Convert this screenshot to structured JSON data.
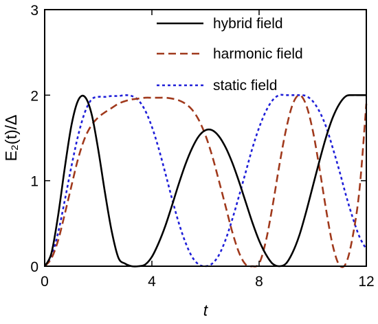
{
  "chart_data": {
    "type": "line",
    "xlabel": "t",
    "ylabel": "E₂(t)/Δ",
    "xlim": [
      0,
      12
    ],
    "ylim": [
      0,
      3
    ],
    "xticks": [
      "0",
      "4",
      "8",
      "12"
    ],
    "yticks": [
      "0",
      "1",
      "2",
      "3"
    ],
    "grid": false,
    "legend_position": "top-right",
    "x": [
      0,
      0.25,
      0.5,
      0.75,
      1,
      1.25,
      1.5,
      1.75,
      2,
      2.25,
      2.5,
      2.75,
      3,
      3.25,
      3.5,
      3.75,
      4,
      4.25,
      4.5,
      4.75,
      5,
      5.25,
      5.5,
      5.75,
      6,
      6.25,
      6.5,
      6.75,
      7,
      7.25,
      7.5,
      7.75,
      8,
      8.25,
      8.5,
      8.75,
      9,
      9.25,
      9.5,
      9.75,
      10,
      10.25,
      10.5,
      10.75,
      11,
      11.25,
      11.5,
      11.75,
      12
    ],
    "series": [
      {
        "name": "hybrid field",
        "color": "#000000",
        "dash": "solid",
        "values": [
          0,
          0.15,
          0.59,
          1.15,
          1.65,
          1.94,
          1.98,
          1.78,
          1.36,
          0.86,
          0.41,
          0.1,
          0.03,
          0.0,
          0.0,
          0.02,
          0.11,
          0.27,
          0.47,
          0.71,
          0.96,
          1.19,
          1.38,
          1.52,
          1.59,
          1.59,
          1.52,
          1.39,
          1.21,
          0.99,
          0.75,
          0.51,
          0.3,
          0.14,
          0.03,
          0.0,
          0.03,
          0.16,
          0.36,
          0.63,
          0.93,
          1.23,
          1.51,
          1.74,
          1.9,
          1.99,
          2.0,
          2.0,
          2.0
        ]
      },
      {
        "name": "harmonic field",
        "color": "#a0391c",
        "dash": "dashed",
        "values": [
          0,
          0.09,
          0.3,
          0.61,
          0.94,
          1.26,
          1.5,
          1.65,
          1.74,
          1.8,
          1.85,
          1.9,
          1.93,
          1.95,
          1.96,
          1.97,
          1.97,
          1.97,
          1.97,
          1.96,
          1.94,
          1.9,
          1.83,
          1.71,
          1.53,
          1.29,
          1.0,
          0.7,
          0.4,
          0.16,
          0.02,
          0.0,
          0.03,
          0.29,
          0.7,
          1.17,
          1.59,
          1.89,
          2.0,
          1.89,
          1.59,
          1.15,
          0.66,
          0.24,
          0.01,
          0.04,
          0.36,
          0.91,
          1.9
        ]
      },
      {
        "name": "static field",
        "color": "#1f1fd8",
        "dash": "dotted",
        "values": [
          0,
          0.12,
          0.39,
          0.77,
          1.17,
          1.53,
          1.8,
          1.95,
          1.98,
          1.98,
          1.99,
          1.99,
          2.0,
          1.99,
          1.94,
          1.82,
          1.63,
          1.38,
          1.09,
          0.79,
          0.51,
          0.28,
          0.11,
          0.02,
          0.0,
          0.03,
          0.13,
          0.31,
          0.55,
          0.82,
          1.1,
          1.38,
          1.62,
          1.81,
          1.94,
          2.0,
          2.0,
          2.0,
          2.0,
          1.99,
          1.93,
          1.81,
          1.63,
          1.38,
          1.11,
          0.82,
          0.56,
          0.34,
          0.2
        ]
      }
    ]
  }
}
